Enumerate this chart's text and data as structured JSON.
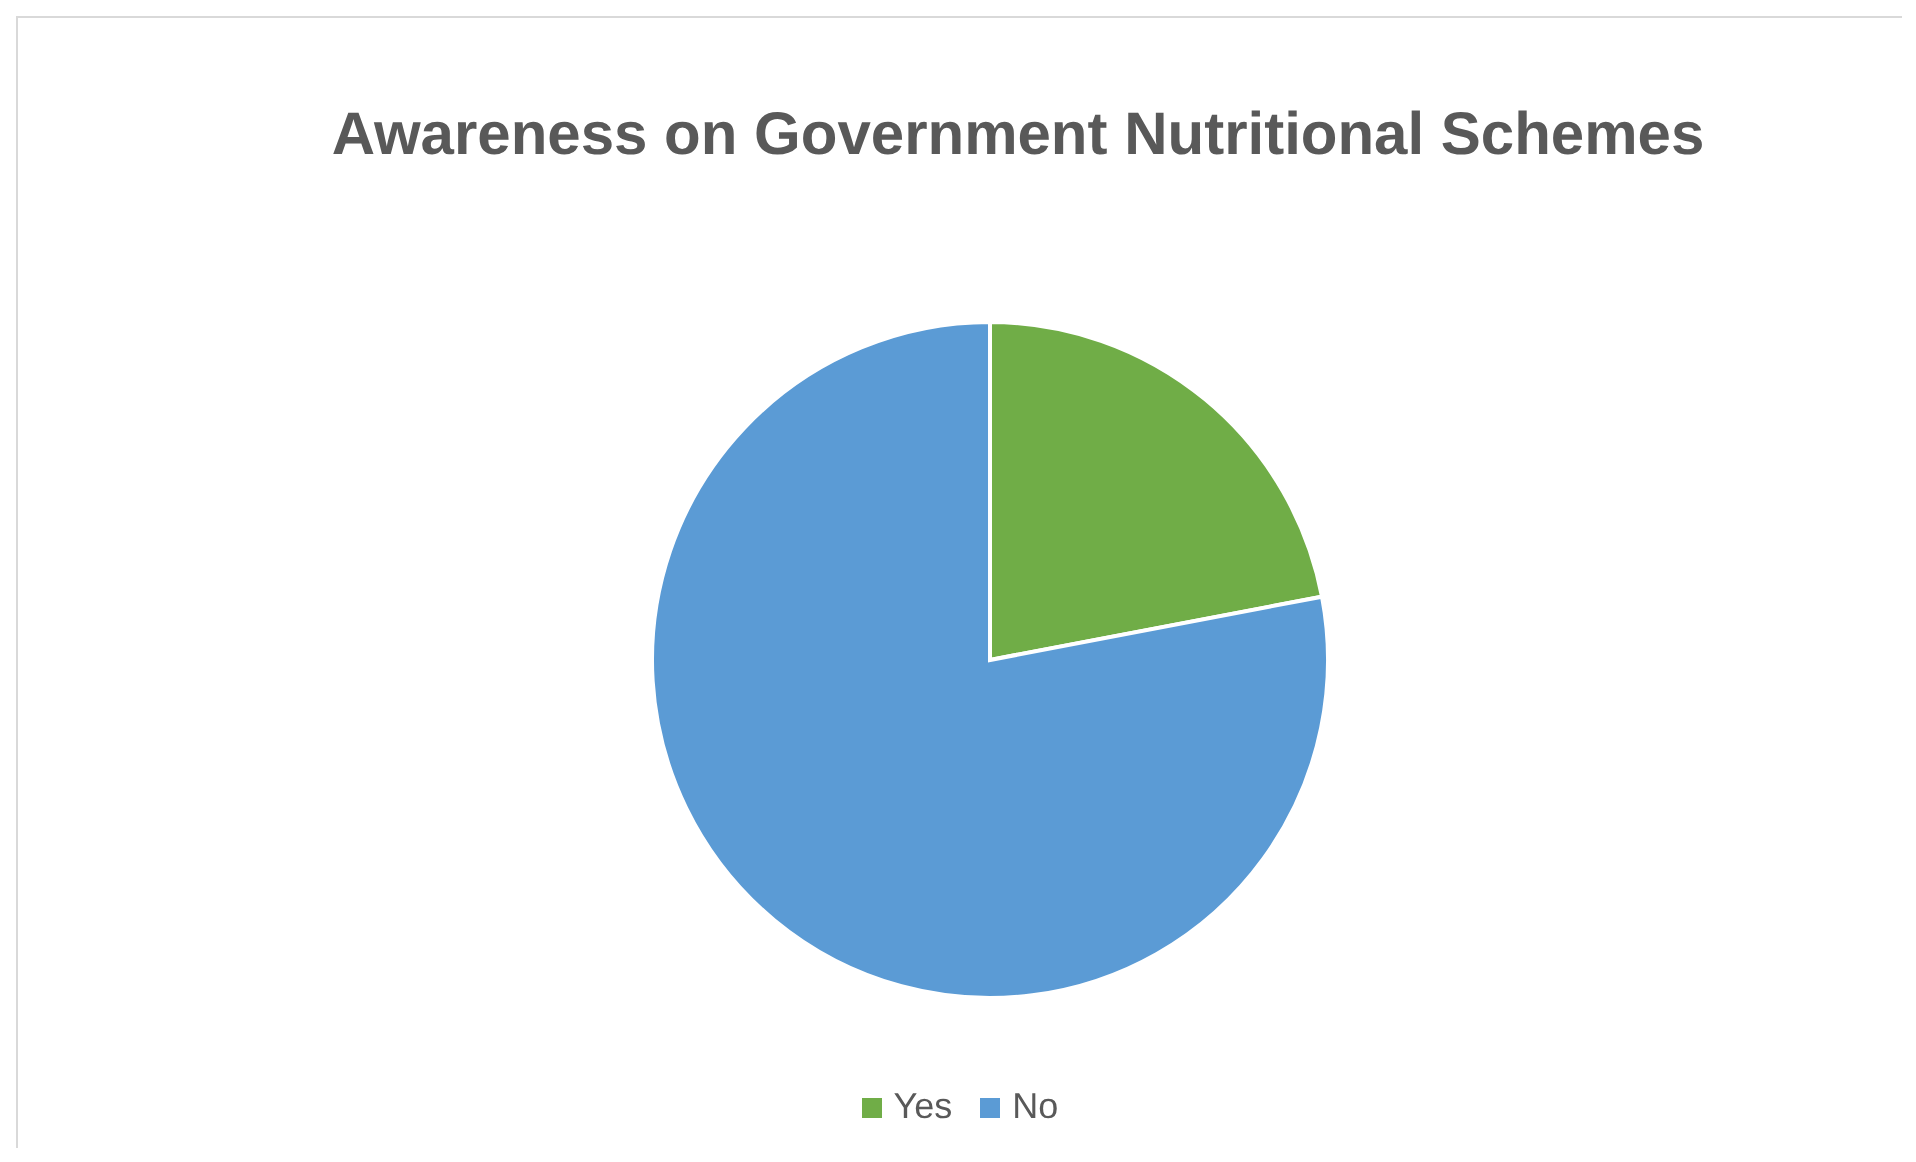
{
  "chart_data": {
    "type": "pie",
    "title": "Awareness on Government Nutritional Schemes",
    "categories": [
      "Yes",
      "No"
    ],
    "values": [
      22,
      78
    ],
    "colors": [
      "#70ad47",
      "#5b9bd5"
    ],
    "legend": "bottom"
  }
}
